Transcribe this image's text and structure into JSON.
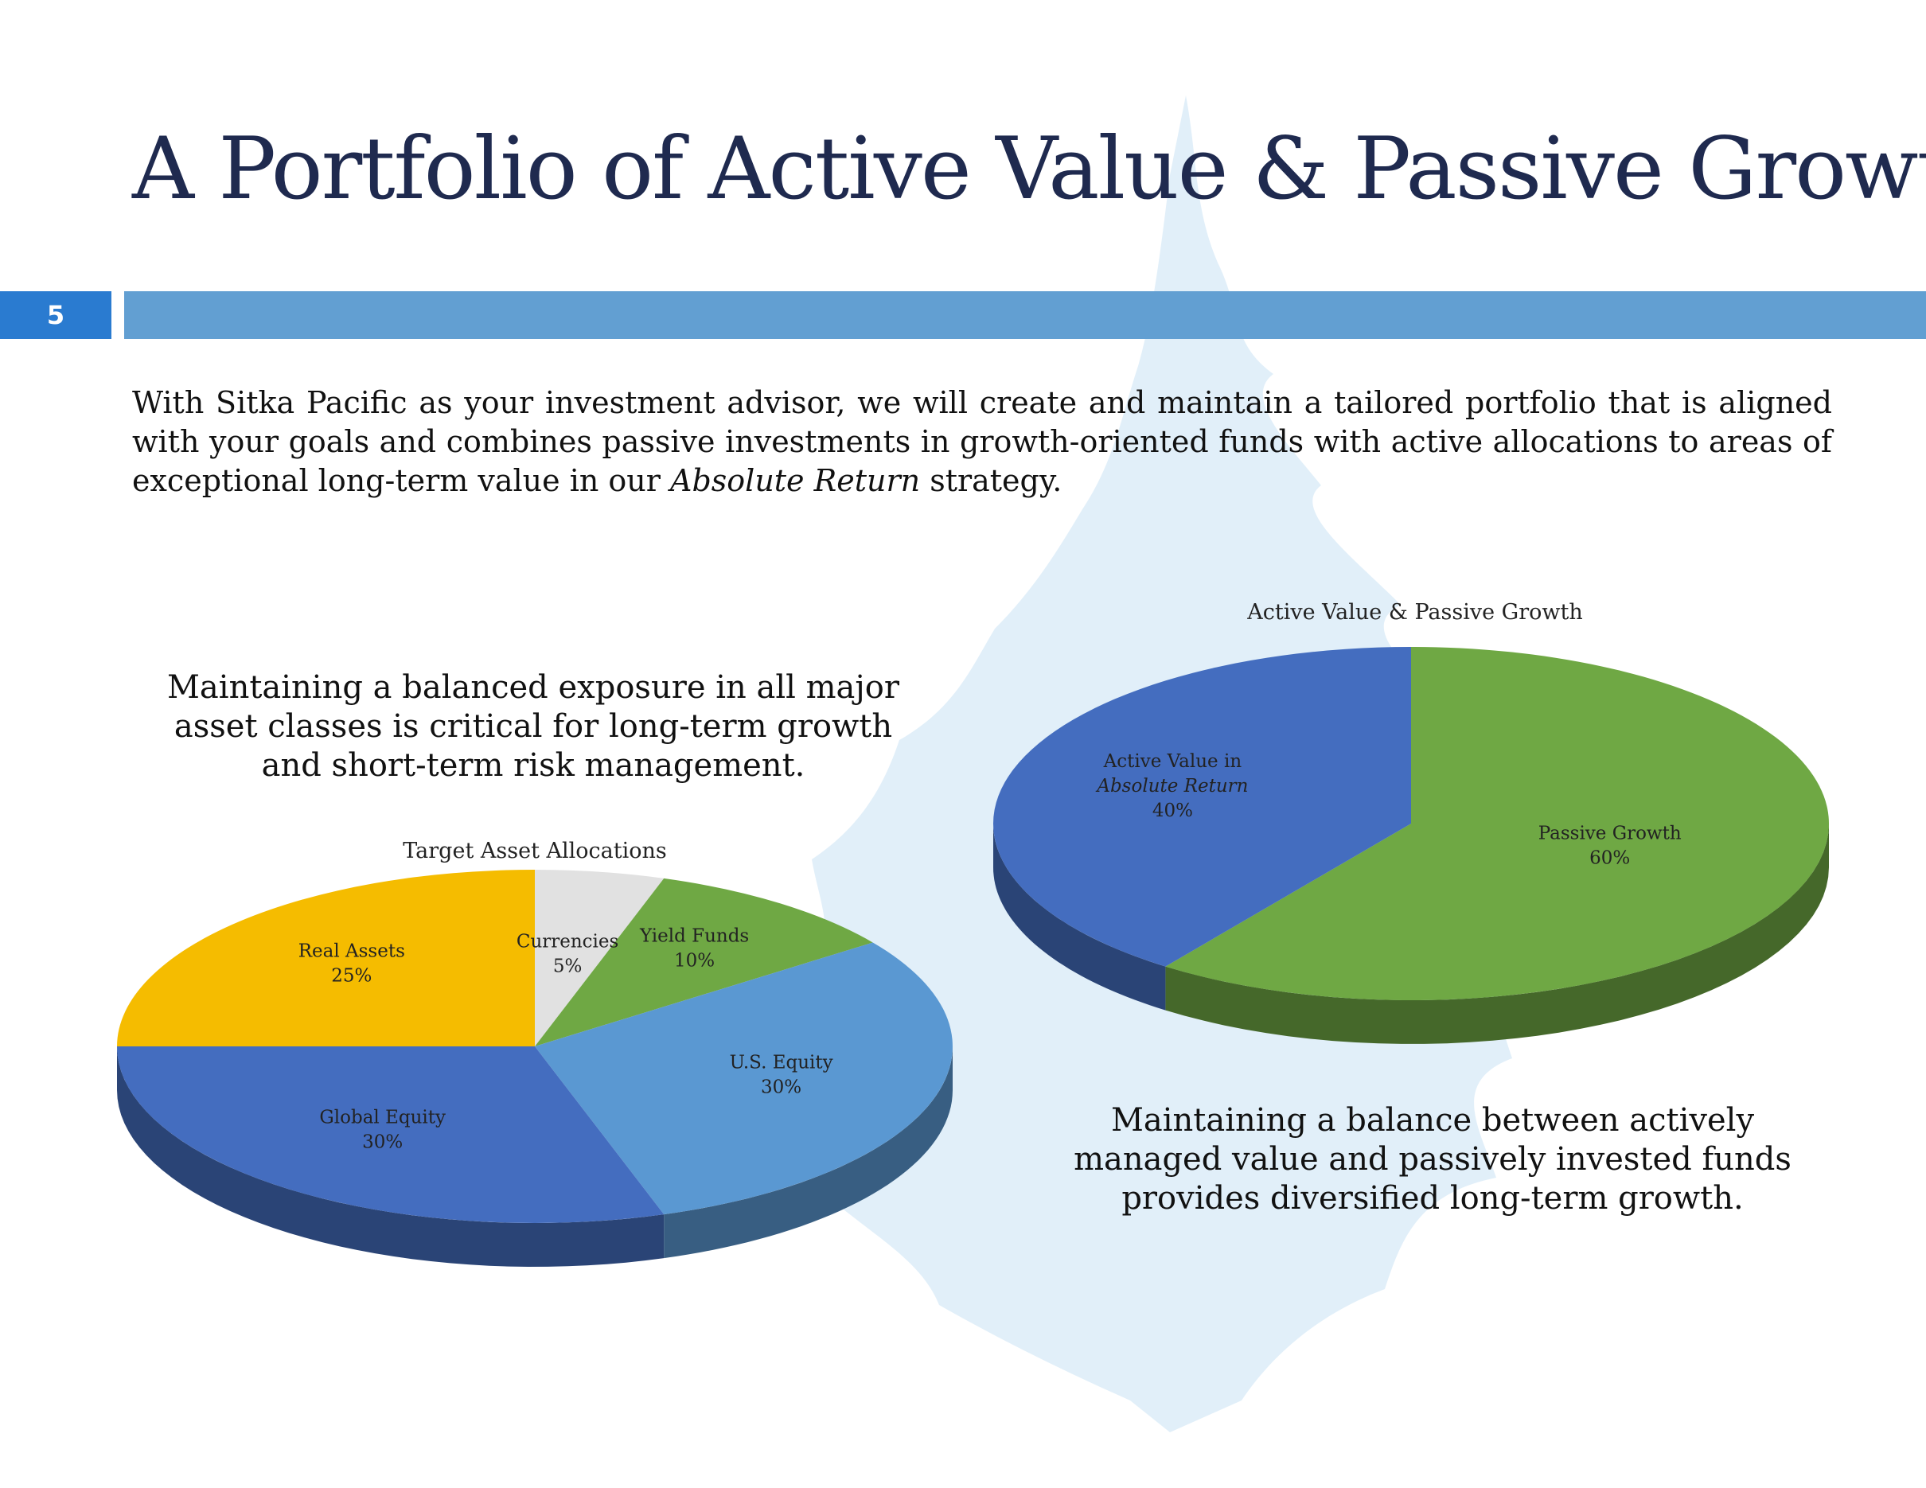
{
  "slide": {
    "title": "A Portfolio of Active Value & Passive Growth",
    "page_number": "5",
    "intro_text": {
      "part1": "With Sitka Pacific as your investment advisor, we will create and maintain a tailored portfolio that is aligned with your goals and combines passive investments in growth-oriented funds with active allocations to areas of exceptional long-term value in our ",
      "emphasis": "Absolute Return",
      "part2": " strategy."
    },
    "caption_left": "Maintaining a balanced exposure in all major asset classes is critical for long-term growth and short-term risk management.",
    "caption_right": "Maintaining a balance between actively managed value and passively invested funds provides diversified long-term growth."
  },
  "colors": {
    "title": "#1f2a4f",
    "page_number_bg": "#2a7bd0",
    "band": "#629fd2",
    "tree_watermark": "#dcecf8"
  },
  "chart_data": [
    {
      "type": "pie",
      "style": "3d",
      "title": "Target Asset Allocations",
      "categories": [
        "Currencies",
        "Yield Funds",
        "U.S. Equity",
        "Global Equity",
        "Real Assets"
      ],
      "values": [
        5,
        10,
        30,
        30,
        25
      ],
      "value_labels": [
        "5%",
        "10%",
        "30%",
        "30%",
        "25%"
      ],
      "colors": [
        "#e1e1e1",
        "#6fa844",
        "#5a98d2",
        "#446dbf",
        "#f5bc00"
      ]
    },
    {
      "type": "pie",
      "style": "3d",
      "title": "Active Value & Passive Growth",
      "categories": [
        "Passive Growth",
        "Active Value in Absolute Return"
      ],
      "label_lines": [
        [
          "Passive Growth"
        ],
        [
          "Active Value in",
          "Absolute Return"
        ]
      ],
      "values": [
        60,
        40
      ],
      "value_labels": [
        "60%",
        "40%"
      ],
      "colors": [
        "#6fa844",
        "#446dbf"
      ]
    }
  ]
}
